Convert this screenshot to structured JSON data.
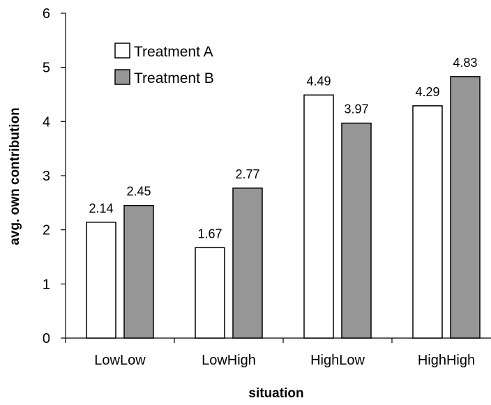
{
  "chart_data": {
    "type": "bar",
    "categories": [
      "LowLow",
      "LowHigh",
      "HighLow",
      "HighHigh"
    ],
    "series": [
      {
        "name": "Treatment A",
        "values": [
          2.14,
          1.67,
          4.49,
          4.29
        ],
        "color": "#ffffff"
      },
      {
        "name": "Treatment B",
        "values": [
          2.45,
          2.77,
          3.97,
          4.83
        ],
        "color": "#969696"
      }
    ],
    "title": "",
    "xlabel": "situation",
    "ylabel": "avg. own contribution",
    "ylim": [
      0,
      6
    ],
    "yticks": [
      0,
      1,
      2,
      3,
      4,
      5,
      6
    ],
    "grid": false,
    "legend_position": "top-left",
    "show_data_labels": true
  }
}
